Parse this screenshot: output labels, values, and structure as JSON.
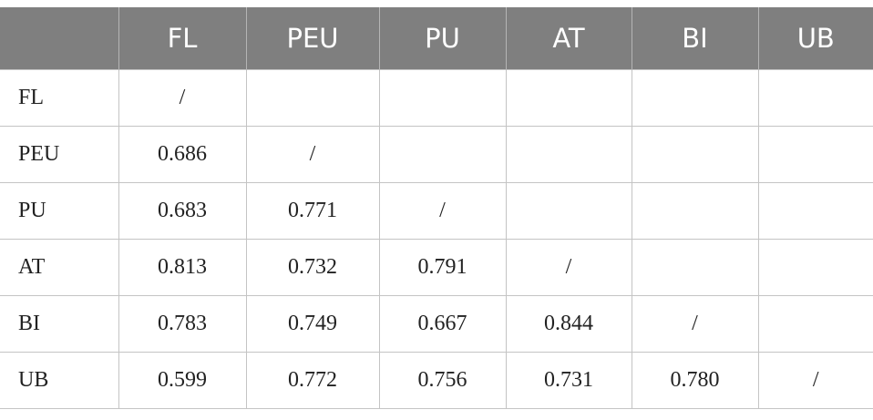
{
  "table": {
    "columns": [
      "FL",
      "PEU",
      "PU",
      "AT",
      "BI",
      "UB"
    ],
    "rows": [
      {
        "label": "FL",
        "values": [
          "/"
        ]
      },
      {
        "label": "PEU",
        "values": [
          "0.686",
          "/"
        ]
      },
      {
        "label": "PU",
        "values": [
          "0.683",
          "0.771",
          "/"
        ]
      },
      {
        "label": "AT",
        "values": [
          "0.813",
          "0.732",
          "0.791",
          "/"
        ]
      },
      {
        "label": "BI",
        "values": [
          "0.783",
          "0.749",
          "0.667",
          "0.844",
          "/"
        ]
      },
      {
        "label": "UB",
        "values": [
          "0.599",
          "0.772",
          "0.756",
          "0.731",
          "0.780",
          "/"
        ]
      }
    ]
  }
}
